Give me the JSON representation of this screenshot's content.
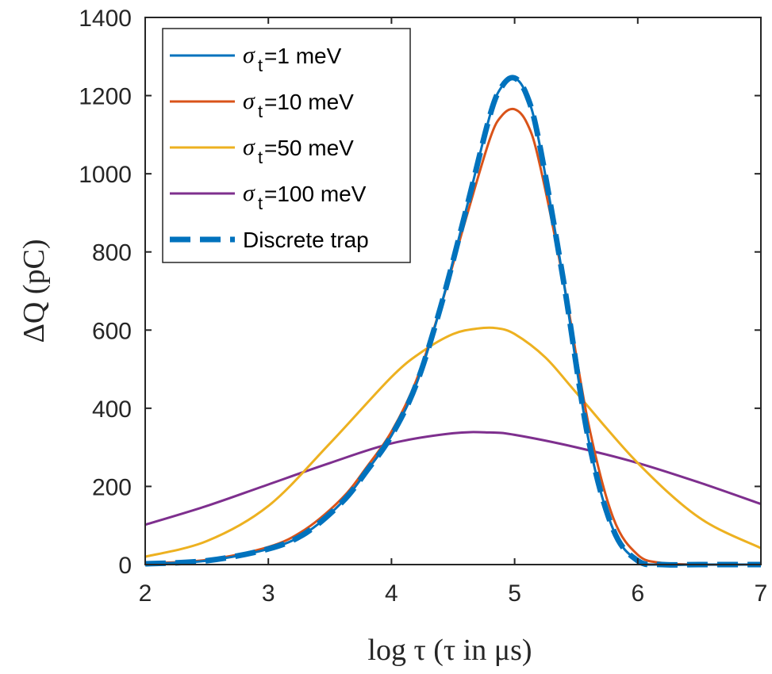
{
  "chart_data": {
    "type": "line",
    "title": "",
    "xlabel": "log τ (τ in μs)",
    "ylabel": "ΔQ (pC)",
    "xlim": [
      2,
      7
    ],
    "ylim": [
      0,
      1400
    ],
    "xticks": [
      "2",
      "3",
      "4",
      "5",
      "6",
      "7"
    ],
    "yticks": [
      "0",
      "200",
      "400",
      "600",
      "800",
      "1000",
      "1200",
      "1400"
    ],
    "grid": false,
    "legend_position": "top-left",
    "series": [
      {
        "name": "σt=1 meV",
        "legend_symbol": "σ",
        "legend_subscript": "t",
        "legend_text": "=1 meV",
        "color": "#0072BD",
        "style": "solid",
        "x": [
          2.0,
          2.5,
          3.0,
          3.3,
          3.6,
          3.8,
          4.0,
          4.2,
          4.4,
          4.6,
          4.8,
          4.9,
          5.0,
          5.1,
          5.2,
          5.4,
          5.6,
          5.8,
          6.0,
          6.2,
          6.5,
          7.0
        ],
        "y": [
          2,
          10,
          40,
          80,
          160,
          240,
          330,
          460,
          660,
          900,
          1150,
          1225,
          1245,
          1200,
          1080,
          720,
          320,
          90,
          10,
          0,
          0,
          0
        ]
      },
      {
        "name": "σt=10 meV",
        "legend_symbol": "σ",
        "legend_subscript": "t",
        "legend_text": "=10 meV",
        "color": "#D95319",
        "style": "solid",
        "x": [
          2.0,
          2.5,
          3.0,
          3.3,
          3.6,
          3.8,
          4.0,
          4.2,
          4.4,
          4.6,
          4.8,
          4.9,
          5.0,
          5.1,
          5.2,
          5.4,
          5.6,
          5.8,
          6.0,
          6.2,
          6.5,
          7.0
        ],
        "y": [
          3,
          12,
          45,
          90,
          170,
          250,
          340,
          470,
          660,
          880,
          1090,
          1150,
          1165,
          1130,
          1030,
          720,
          360,
          120,
          25,
          4,
          0,
          0
        ]
      },
      {
        "name": "σt=50 meV",
        "legend_symbol": "σ",
        "legend_subscript": "t",
        "legend_text": "=50 meV",
        "color": "#EDB120",
        "style": "solid",
        "x": [
          2.0,
          2.5,
          3.0,
          3.5,
          4.0,
          4.25,
          4.5,
          4.7,
          4.85,
          5.0,
          5.25,
          5.5,
          6.0,
          6.5,
          7.0
        ],
        "y": [
          20,
          60,
          150,
          310,
          480,
          545,
          590,
          604,
          605,
          590,
          530,
          440,
          260,
          120,
          42
        ]
      },
      {
        "name": "σt=100 meV",
        "legend_symbol": "σ",
        "legend_subscript": "t",
        "legend_text": "=100 meV",
        "color": "#7E2F8E",
        "style": "solid",
        "x": [
          2.0,
          2.5,
          3.0,
          3.5,
          4.0,
          4.5,
          4.8,
          5.0,
          5.5,
          6.0,
          6.5,
          7.0
        ],
        "y": [
          102,
          150,
          205,
          260,
          310,
          336,
          338,
          332,
          300,
          260,
          210,
          155
        ]
      },
      {
        "name": "Discrete trap",
        "legend_text": "Discrete trap",
        "color": "#0072BD",
        "style": "dashed",
        "x": [
          2.0,
          2.5,
          3.0,
          3.3,
          3.6,
          3.8,
          4.0,
          4.2,
          4.4,
          4.6,
          4.8,
          4.9,
          5.0,
          5.1,
          5.2,
          5.4,
          5.6,
          5.8,
          6.0,
          6.2,
          6.5,
          7.0
        ],
        "y": [
          2,
          10,
          40,
          80,
          160,
          240,
          330,
          460,
          660,
          900,
          1150,
          1225,
          1245,
          1200,
          1080,
          720,
          320,
          90,
          10,
          0,
          0,
          0
        ]
      }
    ]
  }
}
